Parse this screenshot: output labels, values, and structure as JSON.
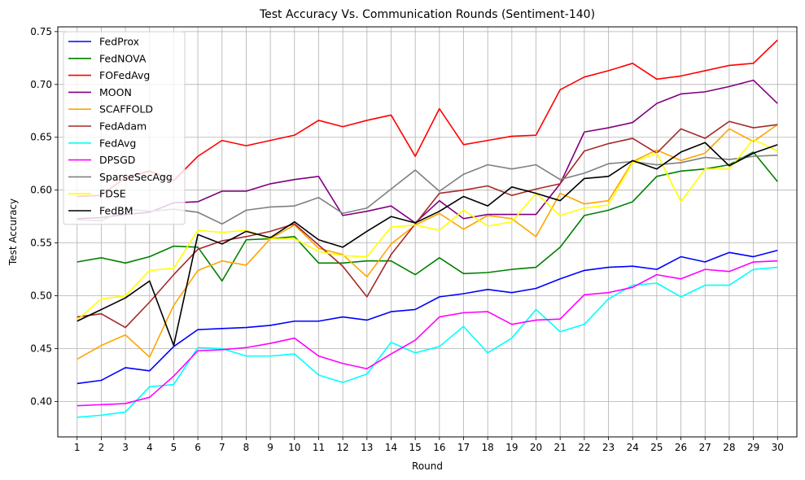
{
  "chart_data": {
    "type": "line",
    "title": "Test Accuracy Vs. Communication Rounds (Sentiment-140)",
    "xlabel": "Round",
    "ylabel": "Test Accuracy",
    "x": [
      1,
      2,
      3,
      4,
      5,
      6,
      7,
      8,
      9,
      10,
      11,
      12,
      13,
      14,
      15,
      16,
      17,
      18,
      19,
      20,
      21,
      22,
      23,
      24,
      25,
      26,
      27,
      28,
      29,
      30
    ],
    "xlim": [
      0.2,
      30.8
    ],
    "ylim": [
      0.3665,
      0.7545
    ],
    "yticks": [
      0.4,
      0.45,
      0.5,
      0.55,
      0.6,
      0.65,
      0.7,
      0.75
    ],
    "ytick_labels": [
      "0.40",
      "0.45",
      "0.50",
      "0.55",
      "0.60",
      "0.65",
      "0.70",
      "0.75"
    ],
    "grid": true,
    "legend_position": "top-left",
    "series": [
      {
        "name": "FedProx",
        "color": "#0000ff",
        "values": [
          0.417,
          0.42,
          0.432,
          0.429,
          0.452,
          0.468,
          0.469,
          0.47,
          0.472,
          0.476,
          0.476,
          0.48,
          0.477,
          0.485,
          0.487,
          0.499,
          0.502,
          0.506,
          0.503,
          0.507,
          0.516,
          0.524,
          0.527,
          0.528,
          0.525,
          0.537,
          0.532,
          0.541,
          0.537,
          0.543
        ]
      },
      {
        "name": "FedNOVA",
        "color": "#008000",
        "values": [
          0.532,
          0.536,
          0.531,
          0.537,
          0.547,
          0.546,
          0.514,
          0.553,
          0.554,
          0.556,
          0.531,
          0.531,
          0.533,
          0.533,
          0.52,
          0.536,
          0.521,
          0.522,
          0.525,
          0.527,
          0.546,
          0.576,
          0.581,
          0.589,
          0.613,
          0.618,
          0.62,
          0.624,
          0.636,
          0.608
        ]
      },
      {
        "name": "FOFedAvg",
        "color": "#ff0000",
        "values": [
          0.594,
          0.595,
          0.612,
          0.618,
          0.609,
          0.632,
          0.647,
          0.642,
          0.647,
          0.652,
          0.666,
          0.66,
          0.666,
          0.671,
          0.632,
          0.677,
          0.643,
          0.647,
          0.651,
          0.652,
          0.695,
          0.707,
          0.713,
          0.72,
          0.705,
          0.708,
          0.713,
          0.718,
          0.72,
          0.742
        ]
      },
      {
        "name": "MOON",
        "color": "#800080",
        "values": [
          0.573,
          0.574,
          0.577,
          0.579,
          0.588,
          0.589,
          0.599,
          0.599,
          0.606,
          0.61,
          0.613,
          0.576,
          0.58,
          0.585,
          0.569,
          0.59,
          0.573,
          0.577,
          0.577,
          0.577,
          0.606,
          0.655,
          0.659,
          0.664,
          0.682,
          0.691,
          0.693,
          0.698,
          0.704,
          0.682
        ]
      },
      {
        "name": "SCAFFOLD",
        "color": "#ffa500",
        "values": [
          0.44,
          0.453,
          0.463,
          0.442,
          0.491,
          0.524,
          0.533,
          0.529,
          0.554,
          0.567,
          0.545,
          0.539,
          0.518,
          0.549,
          0.567,
          0.578,
          0.563,
          0.576,
          0.573,
          0.556,
          0.597,
          0.587,
          0.59,
          0.627,
          0.638,
          0.628,
          0.635,
          0.658,
          0.646,
          0.662
        ]
      },
      {
        "name": "FedAdam",
        "color": "#a52a2a",
        "values": [
          0.48,
          0.483,
          0.47,
          0.494,
          0.52,
          0.544,
          0.552,
          0.556,
          0.561,
          0.568,
          0.548,
          0.528,
          0.499,
          0.539,
          0.568,
          0.597,
          0.6,
          0.604,
          0.595,
          0.601,
          0.606,
          0.637,
          0.644,
          0.649,
          0.635,
          0.658,
          0.649,
          0.665,
          0.659,
          0.662
        ]
      },
      {
        "name": "FedAvg",
        "color": "#00ffff",
        "values": [
          0.385,
          0.387,
          0.39,
          0.414,
          0.416,
          0.451,
          0.45,
          0.443,
          0.443,
          0.445,
          0.425,
          0.418,
          0.426,
          0.456,
          0.446,
          0.452,
          0.471,
          0.446,
          0.46,
          0.487,
          0.466,
          0.473,
          0.497,
          0.51,
          0.512,
          0.499,
          0.51,
          0.51,
          0.525,
          0.527
        ]
      },
      {
        "name": "DPSGD",
        "color": "#ff00ff",
        "values": [
          0.396,
          0.397,
          0.398,
          0.404,
          0.424,
          0.448,
          0.449,
          0.451,
          0.455,
          0.46,
          0.443,
          0.436,
          0.431,
          0.445,
          0.458,
          0.48,
          0.484,
          0.485,
          0.473,
          0.477,
          0.478,
          0.501,
          0.503,
          0.508,
          0.52,
          0.516,
          0.525,
          0.523,
          0.532,
          0.533
        ]
      },
      {
        "name": "SparseSecAgg",
        "color": "#808080",
        "values": [
          0.572,
          0.571,
          0.582,
          0.58,
          0.582,
          0.579,
          0.568,
          0.581,
          0.584,
          0.585,
          0.593,
          0.578,
          0.583,
          0.601,
          0.619,
          0.599,
          0.615,
          0.624,
          0.62,
          0.624,
          0.61,
          0.616,
          0.625,
          0.627,
          0.624,
          0.626,
          0.631,
          0.629,
          0.632,
          0.633
        ]
      },
      {
        "name": "FDSE",
        "color": "#ffff00",
        "values": [
          0.477,
          0.497,
          0.5,
          0.524,
          0.526,
          0.562,
          0.56,
          0.562,
          0.554,
          0.554,
          0.542,
          0.538,
          0.537,
          0.565,
          0.567,
          0.562,
          0.581,
          0.566,
          0.57,
          0.597,
          0.576,
          0.583,
          0.586,
          0.626,
          0.635,
          0.589,
          0.62,
          0.62,
          0.648,
          0.637
        ]
      },
      {
        "name": "FedBM",
        "color": "#000000",
        "values": [
          0.476,
          0.487,
          0.498,
          0.514,
          0.453,
          0.558,
          0.549,
          0.561,
          0.555,
          0.57,
          0.553,
          0.546,
          0.561,
          0.575,
          0.569,
          0.58,
          0.594,
          0.585,
          0.603,
          0.597,
          0.59,
          0.611,
          0.613,
          0.628,
          0.62,
          0.636,
          0.645,
          0.623,
          0.635,
          0.643
        ]
      }
    ]
  }
}
